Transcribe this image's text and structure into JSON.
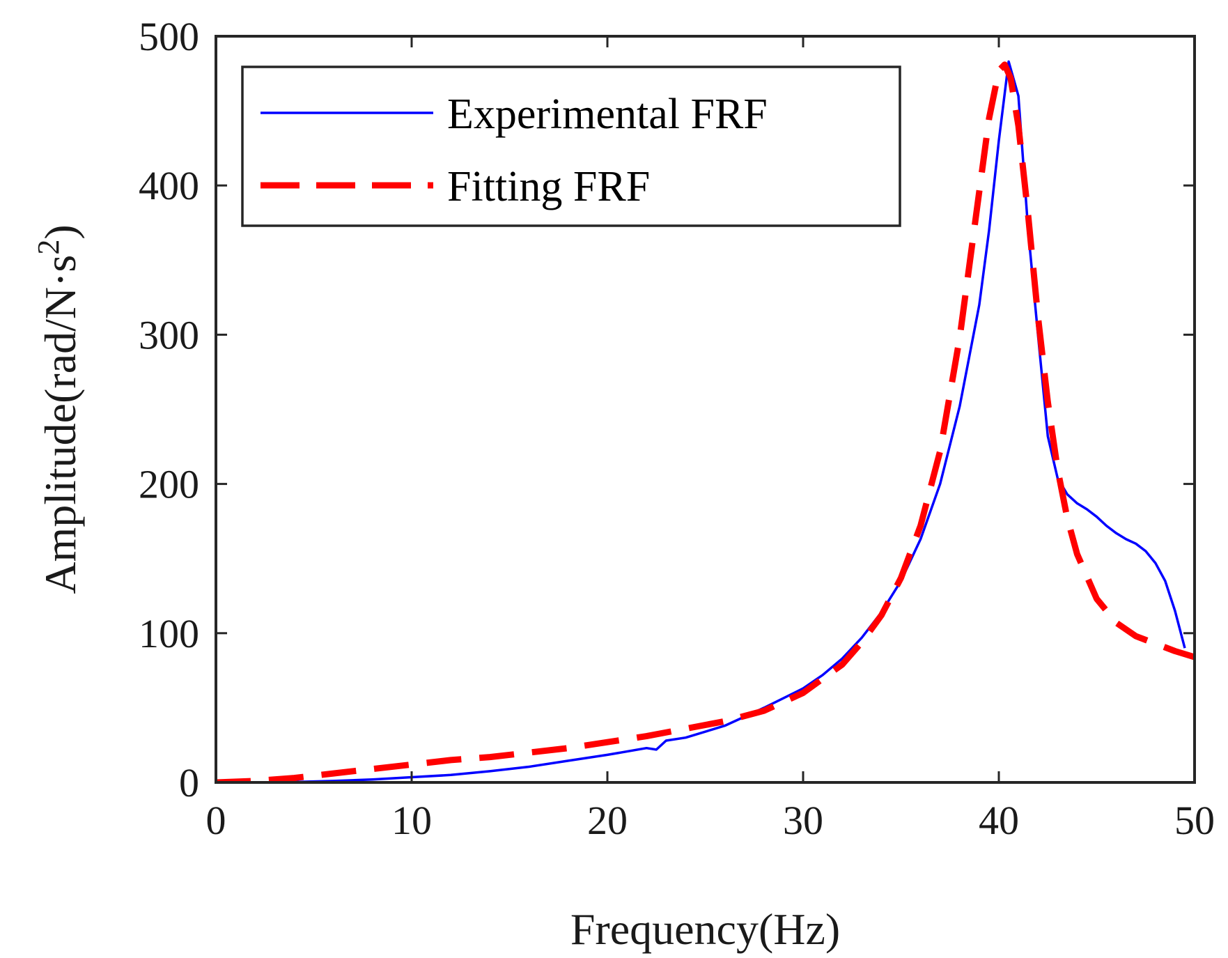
{
  "chart_data": {
    "type": "line",
    "title": "",
    "xlabel": "Frequency(Hz)",
    "ylabel": "Amplitude(rad/N·s",
    "ylabel_superscript": "2",
    "ylabel_close": ")",
    "xlim": [
      0,
      50
    ],
    "ylim": [
      0,
      500
    ],
    "xticks": [
      0,
      10,
      20,
      30,
      40,
      50
    ],
    "yticks": [
      0,
      100,
      200,
      300,
      400,
      500
    ],
    "grid": false,
    "legend_position": "top-left",
    "series": [
      {
        "name": "Experimental FRF",
        "color": "#0000ff",
        "style": "solid",
        "x": [
          0,
          2,
          4,
          6,
          8,
          10,
          12,
          14,
          16,
          18,
          20,
          22,
          22.5,
          23,
          24,
          26,
          28,
          30,
          31,
          32,
          33,
          34,
          35,
          36,
          37,
          38,
          39,
          39.5,
          40,
          40.5,
          41,
          41.5,
          42,
          42.5,
          43,
          43.5,
          44,
          44.5,
          45,
          45.5,
          46,
          46.5,
          47,
          47.5,
          48,
          48.5,
          49,
          49.5
        ],
        "y": [
          0,
          0,
          0.3,
          1,
          2,
          3.5,
          5,
          7.5,
          10.5,
          14.5,
          18.5,
          23,
          22,
          28,
          30,
          38,
          50,
          63,
          72,
          83,
          97,
          114,
          135,
          163,
          200,
          252,
          320,
          370,
          430,
          483,
          460,
          370,
          300,
          232,
          204,
          193,
          187,
          183,
          178,
          172,
          167,
          163,
          160,
          155,
          147,
          135,
          115,
          90
        ]
      },
      {
        "name": "Fitting FRF",
        "color": "#ff0000",
        "style": "dashed",
        "x": [
          0,
          2,
          4,
          6,
          8,
          10,
          12,
          14,
          16,
          18,
          20,
          22,
          24,
          26,
          28,
          30,
          32,
          33,
          34,
          35,
          36,
          37,
          38,
          39,
          39.5,
          40,
          40.3,
          40.6,
          41,
          41.5,
          42,
          42.5,
          43,
          43.5,
          44,
          45,
          46,
          47,
          48,
          49,
          50
        ],
        "y": [
          0,
          1,
          3,
          6,
          9,
          12,
          15,
          17,
          20,
          23,
          27,
          31,
          36,
          41,
          48,
          60,
          79,
          94,
          112,
          137,
          172,
          222,
          298,
          396,
          445,
          477,
          481,
          472,
          440,
          380,
          312,
          255,
          210,
          177,
          153,
          123,
          107,
          98,
          93,
          88,
          84
        ]
      }
    ]
  }
}
